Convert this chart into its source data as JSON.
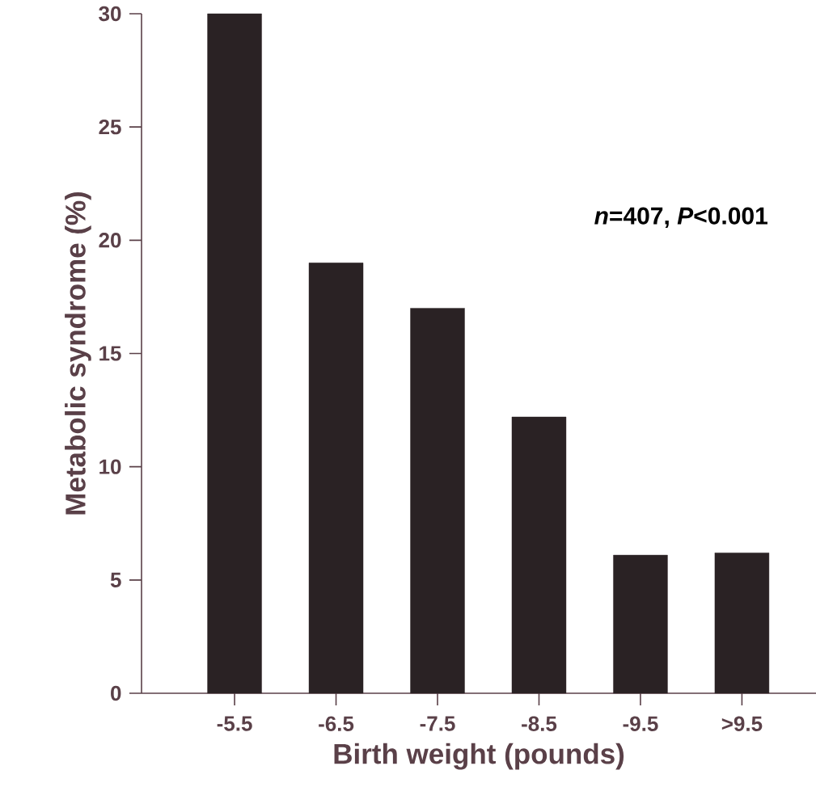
{
  "chart_data": {
    "type": "bar",
    "xlabel": "Birth weight (pounds)",
    "ylabel": "Metabolic syndrome (%)",
    "categories": [
      "-5.5",
      "-6.5",
      "-7.5",
      "-8.5",
      "-9.5",
      ">9.5"
    ],
    "values": [
      30,
      19,
      17,
      12.2,
      6.1,
      6.2
    ],
    "color": "#2a2224",
    "ylim": [
      0,
      30
    ],
    "yticks": [
      0,
      5,
      10,
      15,
      20,
      25,
      30
    ],
    "annotations": [
      "*n*=407, *P*<0.001"
    ]
  }
}
